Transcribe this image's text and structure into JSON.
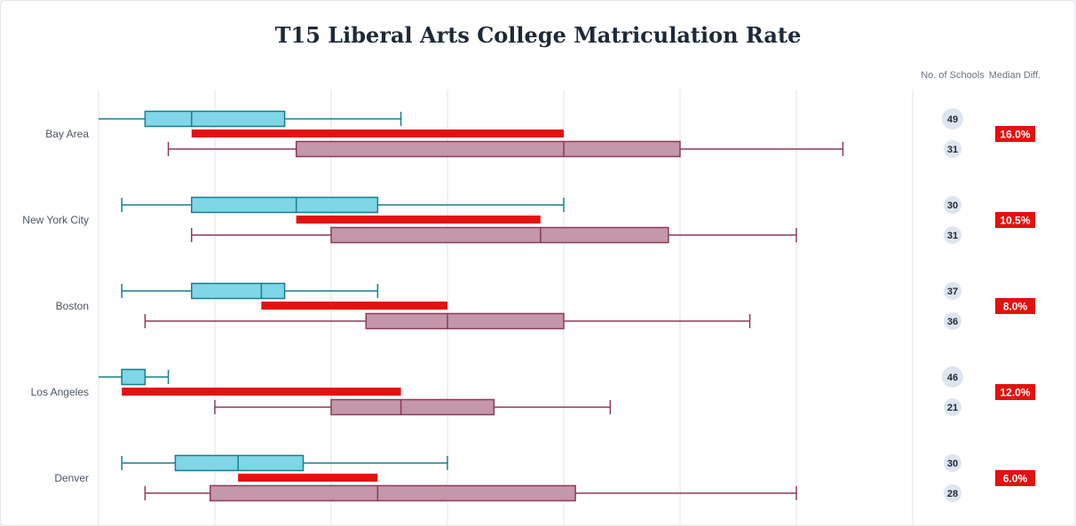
{
  "chart_data": {
    "type": "boxplot",
    "title": "T15 Liberal Arts College Matriculation Rate",
    "xlim": [
      0,
      35
    ],
    "x_grid_step": 5,
    "grid": true,
    "columns": {
      "count": "No. of Schools",
      "diff": "Median Diff."
    },
    "colors": {
      "group_a": "#7fd6e6",
      "group_a_stroke": "#147f8f",
      "group_b": "#c497a9",
      "group_b_stroke": "#8b3a5a",
      "diff_bar": "#e3110f",
      "count_bubble": "#dde5f0"
    },
    "categories": [
      {
        "name": "Bay Area",
        "a": {
          "min": 0,
          "q1": 2,
          "median": 4,
          "q3": 8,
          "max": 13,
          "n": "49"
        },
        "b": {
          "min": 3,
          "q1": 8.5,
          "median": 20,
          "q3": 25,
          "max": 32,
          "n": "31"
        },
        "diff": "16.0%"
      },
      {
        "name": "New York City",
        "a": {
          "min": 1,
          "q1": 4,
          "median": 8.5,
          "q3": 12,
          "max": 20,
          "n": "30"
        },
        "b": {
          "min": 4,
          "q1": 10,
          "median": 19,
          "q3": 24.5,
          "max": 30,
          "n": "31"
        },
        "diff": "10.5%"
      },
      {
        "name": "Boston",
        "a": {
          "min": 1,
          "q1": 4,
          "median": 7,
          "q3": 8,
          "max": 12,
          "n": "37"
        },
        "b": {
          "min": 2,
          "q1": 11.5,
          "median": 15,
          "q3": 20,
          "max": 28,
          "n": "36"
        },
        "diff": "8.0%"
      },
      {
        "name": "Los Angeles",
        "a": {
          "min": 0,
          "q1": 1,
          "median": 1,
          "q3": 2,
          "max": 3,
          "n": "46"
        },
        "b": {
          "min": 5,
          "q1": 10,
          "median": 13,
          "q3": 17,
          "max": 22,
          "n": "21"
        },
        "diff": "12.0%"
      },
      {
        "name": "Denver",
        "a": {
          "min": 1,
          "q1": 3.3,
          "median": 6,
          "q3": 8.8,
          "max": 15,
          "n": "30"
        },
        "b": {
          "min": 2,
          "q1": 4.8,
          "median": 12,
          "q3": 20.5,
          "max": 30,
          "n": "28"
        },
        "diff": "6.0%"
      }
    ]
  }
}
